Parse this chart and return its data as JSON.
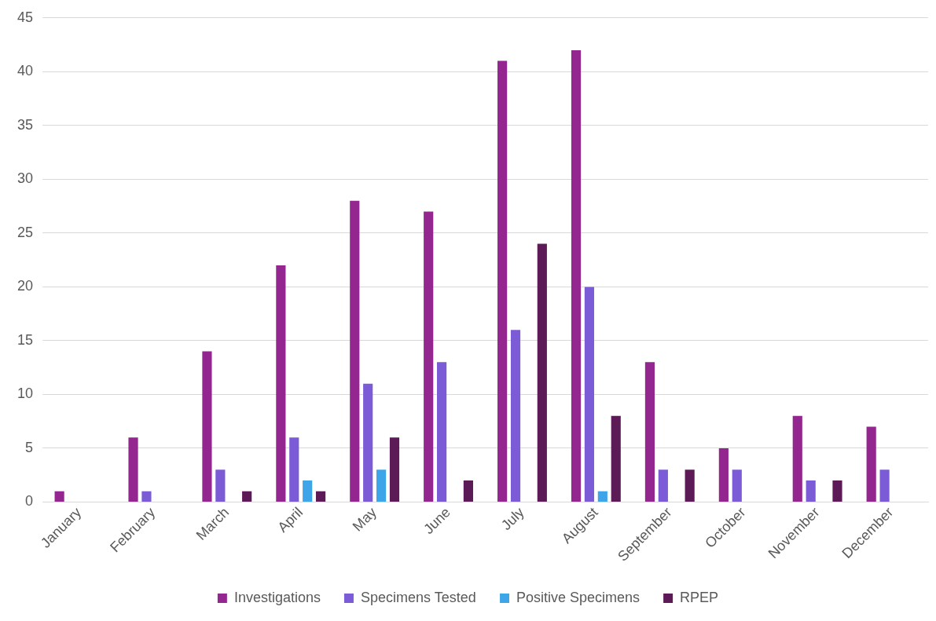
{
  "chart_data": {
    "type": "bar",
    "categories": [
      "January",
      "February",
      "March",
      "April",
      "May",
      "June",
      "July",
      "August",
      "September",
      "October",
      "November",
      "December"
    ],
    "series": [
      {
        "name": "Investigations",
        "color": "#93278f",
        "values": [
          1,
          6,
          14,
          22,
          28,
          27,
          41,
          42,
          13,
          5,
          8,
          7
        ]
      },
      {
        "name": "Specimens Tested",
        "color": "#7b5bd6",
        "values": [
          0,
          1,
          3,
          6,
          11,
          13,
          16,
          20,
          3,
          3,
          2,
          3
        ]
      },
      {
        "name": "Positive Specimens",
        "color": "#3ea5e8",
        "values": [
          0,
          0,
          0,
          2,
          3,
          0,
          0,
          1,
          0,
          0,
          0,
          0
        ]
      },
      {
        "name": "RPEP",
        "color": "#5c1a57",
        "values": [
          0,
          0,
          1,
          1,
          6,
          2,
          24,
          8,
          3,
          0,
          2,
          0
        ]
      }
    ],
    "ylim": [
      0,
      45
    ],
    "yticks": [
      0,
      5,
      10,
      15,
      20,
      25,
      30,
      35,
      40,
      45
    ],
    "grid": "y",
    "legend": "bottom"
  }
}
